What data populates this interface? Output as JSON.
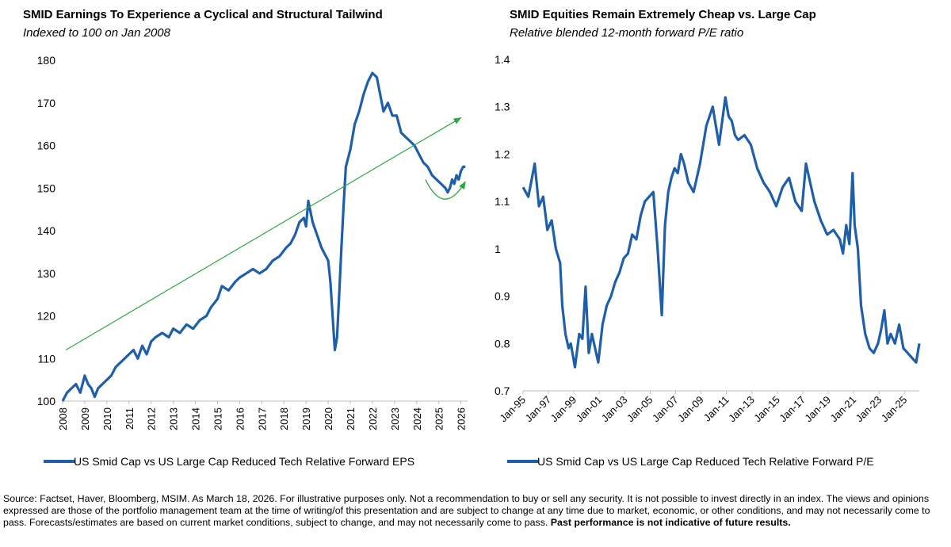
{
  "footnote": {
    "text": "Source: Factset, Haver, Bloomberg, MSIM. As March 18, 2026. For illustrative purposes only. Not a recommendation to buy or sell any security. It is not possible to invest directly in an index. The views and opinions expressed are those of the portfolio management team at the time of writing/of this presentation and are subject to change at any time due to market, economic, or other conditions, and may not necessarily come to pass.  Forecasts/estimates are based on current market conditions, subject to change, and may not necessarily come to pass.",
    "bold": "Past performance is not indicative of future results."
  },
  "chart_data": [
    {
      "type": "line",
      "title": "SMID Earnings To Experience a Cyclical and Structural Tailwind",
      "subtitle": "Indexed to 100 on Jan 2008",
      "xlabel": "",
      "ylabel": "",
      "ylim": [
        100,
        180
      ],
      "yticks": [
        100,
        110,
        120,
        130,
        140,
        150,
        160,
        170,
        180
      ],
      "xlim": [
        2008,
        2026.3
      ],
      "xticks": [
        "2008",
        "2009",
        "2010",
        "2011",
        "2012",
        "2013",
        "2014",
        "2015",
        "2016",
        "2017",
        "2018",
        "2019",
        "2020",
        "2021",
        "2022",
        "2023",
        "2024",
        "2025",
        "2026"
      ],
      "grid": false,
      "legend": "bottom",
      "color": "#1f5ea8",
      "series": [
        {
          "name": "US Smid Cap vs US Large Cap Reduced Tech Relative Forward EPS",
          "x": [
            2008.0,
            2008.2,
            2008.4,
            2008.6,
            2008.8,
            2009.0,
            2009.15,
            2009.3,
            2009.45,
            2009.6,
            2009.8,
            2010.0,
            2010.2,
            2010.4,
            2010.6,
            2010.8,
            2011.0,
            2011.2,
            2011.4,
            2011.6,
            2011.8,
            2012.0,
            2012.2,
            2012.5,
            2012.8,
            2013.0,
            2013.3,
            2013.6,
            2013.9,
            2014.2,
            2014.5,
            2014.7,
            2015.0,
            2015.2,
            2015.5,
            2015.8,
            2016.0,
            2016.3,
            2016.6,
            2016.9,
            2017.2,
            2017.5,
            2017.8,
            2018.1,
            2018.3,
            2018.5,
            2018.7,
            2018.9,
            2019.0,
            2019.1,
            2019.3,
            2019.5,
            2019.7,
            2019.9,
            2020.0,
            2020.1,
            2020.2,
            2020.3,
            2020.4,
            2020.5,
            2020.6,
            2020.7,
            2020.8,
            2021.0,
            2021.2,
            2021.4,
            2021.6,
            2021.8,
            2022.0,
            2022.2,
            2022.35,
            2022.5,
            2022.7,
            2022.9,
            2023.1,
            2023.3,
            2023.5,
            2023.7,
            2023.9,
            2024.1,
            2024.3,
            2024.5,
            2024.7,
            2024.9,
            2025.1,
            2025.3,
            2025.4,
            2025.5,
            2025.6,
            2025.7,
            2025.8,
            2025.9,
            2026.0,
            2026.1,
            2026.2
          ],
          "values": [
            100,
            102,
            103,
            104,
            102,
            106,
            104,
            103,
            101,
            103,
            104,
            105,
            106,
            108,
            109,
            110,
            111,
            112,
            110,
            113,
            111,
            114,
            115,
            116,
            115,
            117,
            116,
            118,
            117,
            119,
            120,
            122,
            124,
            127,
            126,
            128,
            129,
            130,
            131,
            130,
            131,
            133,
            134,
            136,
            137,
            139,
            142,
            143,
            141,
            147,
            142,
            139,
            136,
            134,
            133,
            128,
            120,
            112,
            115,
            125,
            136,
            146,
            155,
            159,
            165,
            168,
            172,
            175,
            177,
            176,
            172,
            168,
            170,
            167,
            167,
            163,
            162,
            161,
            160,
            158,
            156,
            155,
            153,
            152,
            151,
            150,
            149,
            150,
            152,
            151,
            153,
            152,
            154,
            155,
            155
          ]
        }
      ],
      "annotations": [
        {
          "type": "trend-arrow",
          "from": [
            2008.0,
            112
          ],
          "to": [
            2026.0,
            166.5
          ],
          "color": "#2ca840"
        },
        {
          "type": "curved-arrow",
          "from": [
            2024.4,
            152
          ],
          "to": [
            2026.2,
            151.5
          ],
          "color": "#2ca840"
        }
      ]
    },
    {
      "type": "line",
      "title": "SMID Equities Remain Extremely Cheap vs. Large Cap",
      "subtitle": "Relative blended 12-month forward P/E ratio",
      "xlabel": "",
      "ylabel": "",
      "ylim": [
        0.7,
        1.4
      ],
      "yticks": [
        "0.7",
        "0.8",
        "0.9",
        "1",
        "1.1",
        "1.2",
        "1.3",
        "1.4"
      ],
      "xlim": [
        "Jan-95",
        "Mar-26"
      ],
      "xticks": [
        "Jan-95",
        "Jan-97",
        "Jan-99",
        "Jan-01",
        "Jan-03",
        "Jan-05",
        "Jan-07",
        "Jan-09",
        "Jan-11",
        "Jan-13",
        "Jan-15",
        "Jan-17",
        "Jan-19",
        "Jan-21",
        "Jan-23",
        "Jan-25"
      ],
      "grid": false,
      "legend": "bottom",
      "color": "#1f5ea8",
      "series": [
        {
          "name": "US Smid Cap vs US Large Cap Reduced Tech Relative Forward P/E",
          "x": [
            "1995-01",
            "1995-06",
            "1995-12",
            "1996-04",
            "1996-08",
            "1996-12",
            "1997-04",
            "1997-08",
            "1997-12",
            "1998-02",
            "1998-05",
            "1998-08",
            "1998-10",
            "1999-02",
            "1999-06",
            "1999-09",
            "1999-12",
            "2000-03",
            "2000-06",
            "2000-09",
            "2000-12",
            "2001-04",
            "2001-08",
            "2001-12",
            "2002-04",
            "2002-08",
            "2002-12",
            "2003-04",
            "2003-08",
            "2003-12",
            "2004-04",
            "2004-08",
            "2004-12",
            "2005-04",
            "2005-08",
            "2005-12",
            "2006-03",
            "2006-06",
            "2006-09",
            "2006-12",
            "2007-03",
            "2007-06",
            "2007-09",
            "2008-01",
            "2008-06",
            "2008-12",
            "2009-06",
            "2009-12",
            "2010-06",
            "2010-12",
            "2011-03",
            "2011-06",
            "2011-09",
            "2011-12",
            "2012-06",
            "2012-12",
            "2013-06",
            "2013-12",
            "2014-06",
            "2014-12",
            "2015-06",
            "2015-12",
            "2016-06",
            "2016-12",
            "2017-04",
            "2017-08",
            "2017-12",
            "2018-06",
            "2018-12",
            "2019-06",
            "2019-12",
            "2020-03",
            "2020-06",
            "2020-09",
            "2020-12",
            "2021-02",
            "2021-05",
            "2021-08",
            "2021-12",
            "2022-04",
            "2022-08",
            "2022-12",
            "2023-03",
            "2023-06",
            "2023-09",
            "2023-12",
            "2024-04",
            "2024-08",
            "2024-12",
            "2025-04",
            "2025-08",
            "2025-12",
            "2026-03"
          ],
          "values": [
            1.13,
            1.11,
            1.18,
            1.09,
            1.11,
            1.04,
            1.06,
            1.0,
            0.97,
            0.88,
            0.82,
            0.79,
            0.8,
            0.75,
            0.82,
            0.81,
            0.92,
            0.78,
            0.82,
            0.79,
            0.76,
            0.84,
            0.88,
            0.9,
            0.93,
            0.95,
            0.98,
            0.99,
            1.03,
            1.02,
            1.07,
            1.1,
            1.11,
            1.12,
            1.0,
            0.86,
            1.05,
            1.12,
            1.15,
            1.17,
            1.16,
            1.2,
            1.18,
            1.14,
            1.12,
            1.18,
            1.26,
            1.3,
            1.22,
            1.32,
            1.28,
            1.27,
            1.24,
            1.23,
            1.24,
            1.22,
            1.17,
            1.14,
            1.12,
            1.09,
            1.13,
            1.15,
            1.1,
            1.08,
            1.18,
            1.14,
            1.1,
            1.06,
            1.03,
            1.04,
            1.02,
            0.99,
            1.05,
            1.01,
            1.16,
            1.05,
            1.0,
            0.88,
            0.82,
            0.79,
            0.78,
            0.8,
            0.83,
            0.87,
            0.8,
            0.82,
            0.8,
            0.84,
            0.79,
            0.78,
            0.77,
            0.76,
            0.8
          ]
        }
      ]
    }
  ]
}
